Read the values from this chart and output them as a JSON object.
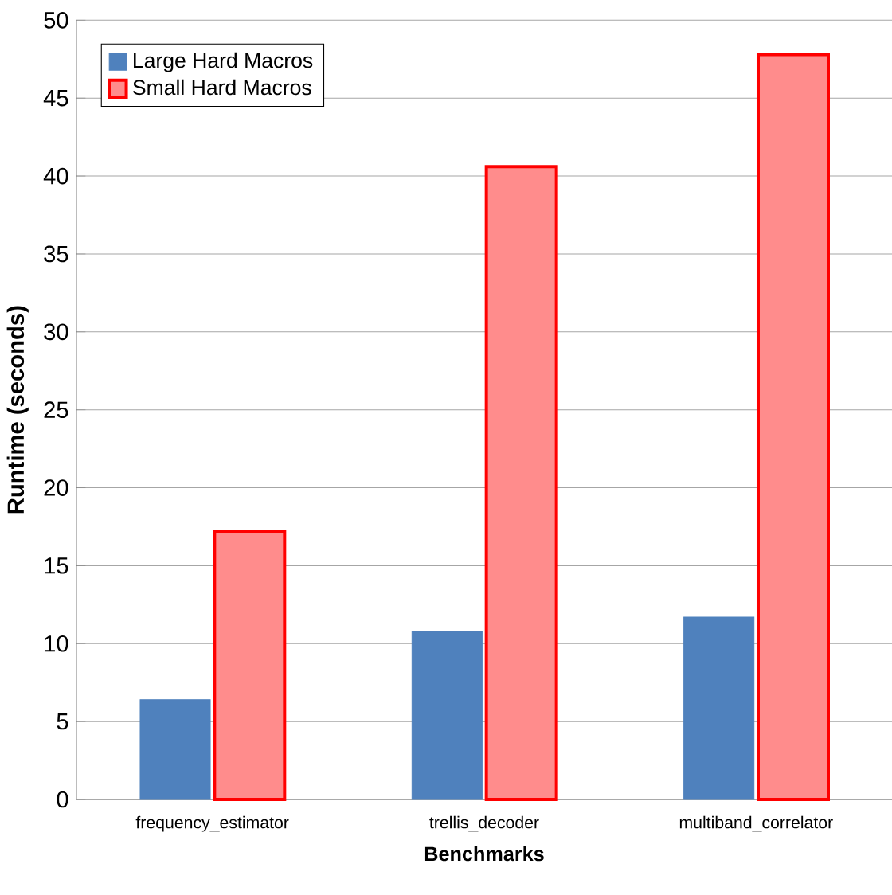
{
  "chart_data": {
    "type": "bar",
    "xlabel": "Benchmarks",
    "ylabel": "Runtime (seconds)",
    "categories": [
      "frequency_estimator",
      "trellis_decoder",
      "multiband_correlator"
    ],
    "series": [
      {
        "name": "Large Hard Macros",
        "color": "#4f81bd",
        "values": [
          6.4,
          10.8,
          11.7
        ]
      },
      {
        "name": "Small Hard Macros",
        "color": "#ff0000",
        "values": [
          17.2,
          40.6,
          47.8
        ]
      }
    ],
    "ylim": [
      0,
      50
    ],
    "yticks": [
      0,
      5,
      10,
      15,
      20,
      25,
      30,
      35,
      40,
      45,
      50
    ],
    "grid": "y",
    "legend": "top left"
  }
}
